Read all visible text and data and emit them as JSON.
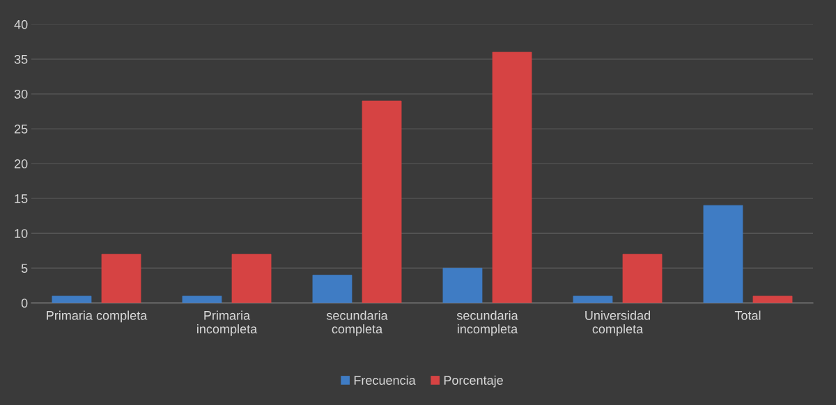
{
  "chart_data": {
    "type": "bar",
    "categories": [
      "Primaria completa",
      "Primaria\nincompleta",
      "secundaria\ncompleta",
      "secundaria\nincompleta",
      "Universidad\ncompleta",
      "Total"
    ],
    "series": [
      {
        "name": "Frecuencia",
        "color": "#3f7cc4",
        "values": [
          1,
          1,
          4,
          5,
          1,
          14
        ]
      },
      {
        "name": "Porcentaje",
        "color": "#d64343",
        "values": [
          7,
          7,
          29,
          36,
          7,
          1
        ]
      }
    ],
    "ylim": [
      0,
      40
    ],
    "yticks": [
      0,
      5,
      10,
      15,
      20,
      25,
      30,
      35,
      40
    ],
    "grid": "y",
    "legend": "bottom"
  }
}
